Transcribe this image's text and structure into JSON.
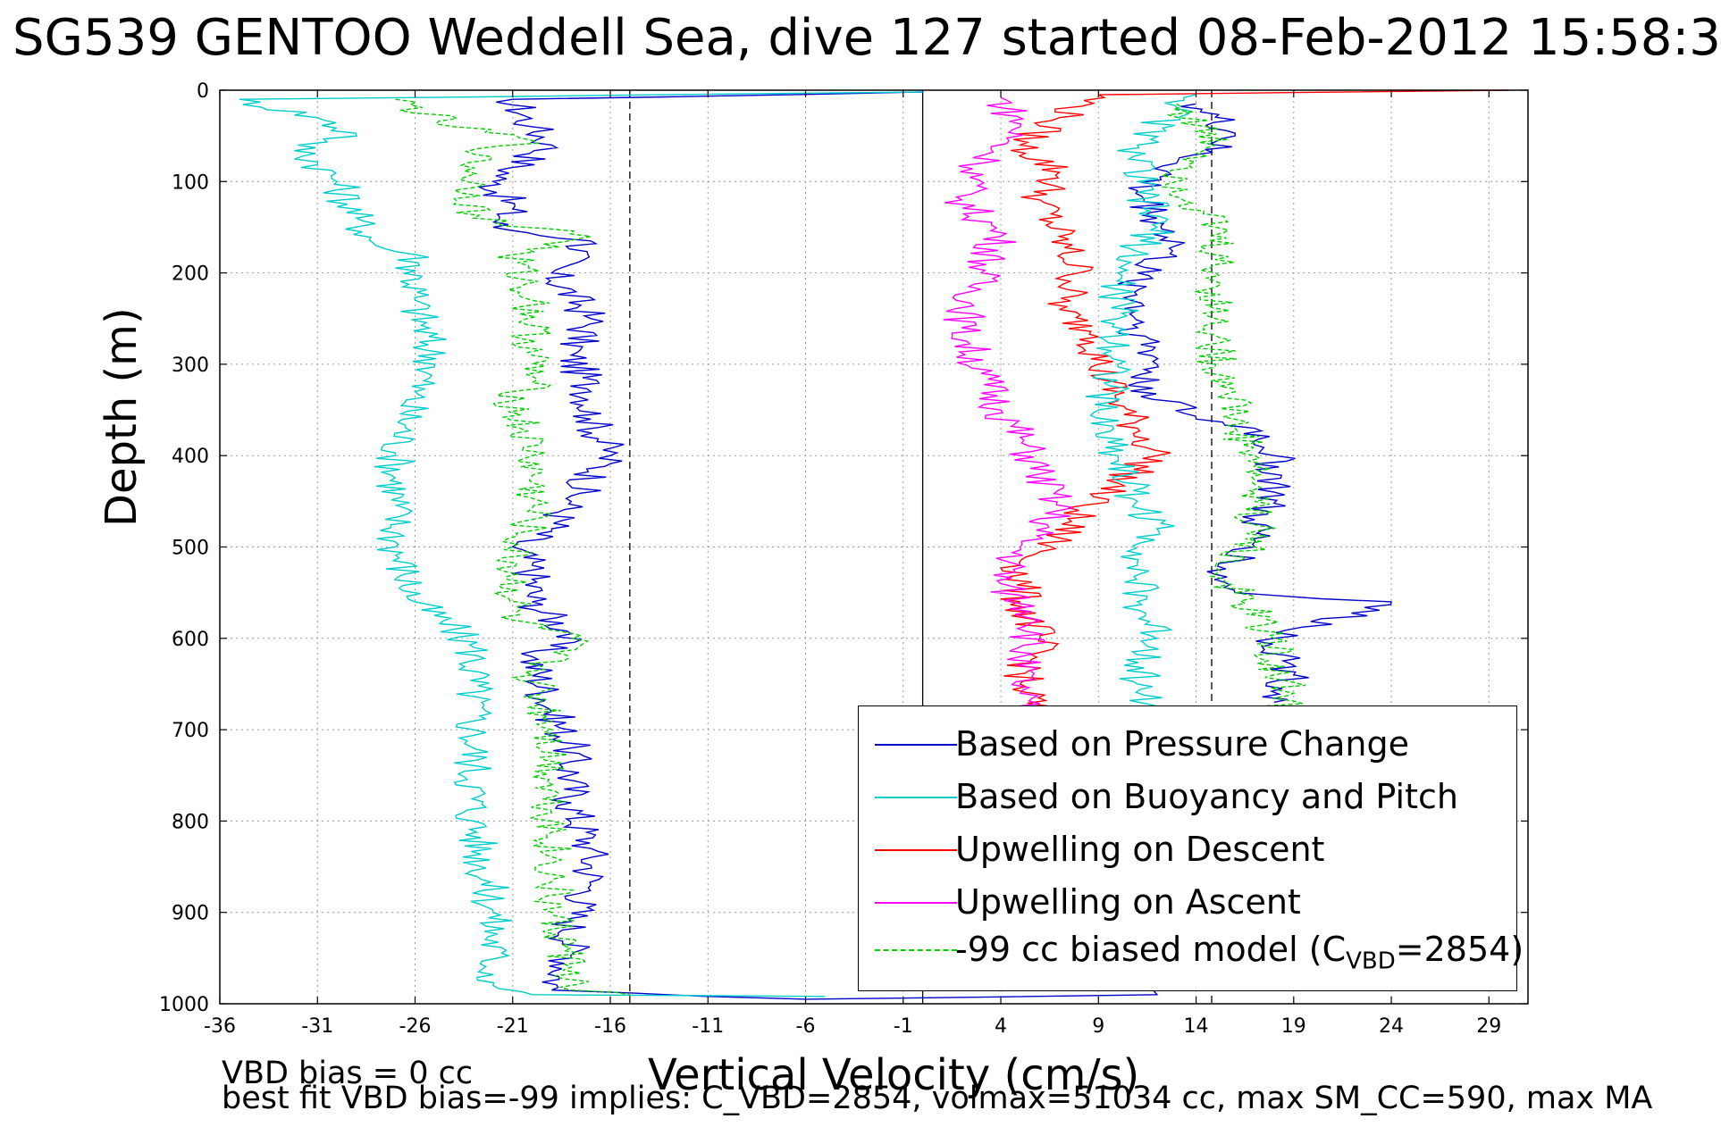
{
  "figure": {
    "title": "SG539 GENTOO Weddell Sea, dive 127 started 08-Feb-2012 15:58:3",
    "footer_line1": "VBD bias = 0 cc",
    "footer_line2": "best fit VBD bias=-99 implies: C_VBD=2854, volmax=51034 cc, max SM_CC=590, max MA"
  },
  "chart_data": {
    "type": "line",
    "xlabel": "Vertical Velocity (cm/s)",
    "ylabel": "Depth (m)",
    "xlim": [
      -36,
      31
    ],
    "ylim": [
      1000,
      0
    ],
    "xticks": [
      "-36",
      "-31",
      "-26",
      "-21",
      "-16",
      "-11",
      "-6",
      "-1",
      "4",
      "9",
      "14",
      "19",
      "24",
      "29"
    ],
    "yticks": [
      "0",
      "100",
      "200",
      "300",
      "400",
      "500",
      "600",
      "700",
      "800",
      "900",
      "1000"
    ],
    "grid": true,
    "legend_position": "bottom-right",
    "reference_lines": [
      {
        "x": -15,
        "style": "dashed",
        "color": "#000000"
      },
      {
        "x": 0,
        "style": "solid",
        "color": "#000000"
      },
      {
        "x": 14.8,
        "style": "dashed",
        "color": "#000000"
      }
    ],
    "series": [
      {
        "name": "Based on Pressure Change",
        "color": "#0000cc",
        "style": "solid",
        "points": [
          [
            0,
            2
          ],
          [
            -21,
            10
          ],
          [
            -20,
            40
          ],
          [
            -19,
            60
          ],
          [
            -22,
            100
          ],
          [
            -21,
            130
          ],
          [
            -22,
            150
          ],
          [
            -17,
            165
          ],
          [
            -19,
            200
          ],
          [
            -17,
            250
          ],
          [
            -18,
            290
          ],
          [
            -17,
            330
          ],
          [
            -17,
            360
          ],
          [
            -16,
            400
          ],
          [
            -18,
            450
          ],
          [
            -19,
            480
          ],
          [
            -21,
            500
          ],
          [
            -20,
            520
          ],
          [
            -20,
            560
          ],
          [
            -18,
            595
          ],
          [
            -20,
            620
          ],
          [
            -19,
            680
          ],
          [
            -18,
            720
          ],
          [
            -18,
            780
          ],
          [
            -17,
            830
          ],
          [
            -17,
            870
          ],
          [
            -18,
            910
          ],
          [
            -18,
            950
          ],
          [
            -19,
            985
          ],
          [
            -6,
            995
          ],
          [
            12,
            990
          ],
          [
            12,
            980
          ]
        ]
      },
      {
        "name": "Based on Buoyancy and Pitch",
        "color": "#00cccc",
        "style": "solid",
        "points": [
          [
            0,
            2
          ],
          [
            -35,
            10
          ],
          [
            -31,
            30
          ],
          [
            -29,
            50
          ],
          [
            -32,
            60
          ],
          [
            -30,
            100
          ],
          [
            -29,
            140
          ],
          [
            -28,
            170
          ],
          [
            -26,
            180
          ],
          [
            -26,
            230
          ],
          [
            -25,
            300
          ],
          [
            -26,
            330
          ],
          [
            -27,
            400
          ],
          [
            -27,
            500
          ],
          [
            -26,
            560
          ],
          [
            -24,
            590
          ],
          [
            -23,
            610
          ],
          [
            -23,
            700
          ],
          [
            -23,
            800
          ],
          [
            -22,
            900
          ],
          [
            -22,
            980
          ],
          [
            -20,
            990
          ],
          [
            -5,
            992
          ]
        ]
      },
      {
        "name": "Upwelling on Descent",
        "color": "#ff0000",
        "style": "solid",
        "points": [
          [
            30,
            0
          ],
          [
            9,
            5
          ],
          [
            7,
            30
          ],
          [
            5,
            60
          ],
          [
            7,
            90
          ],
          [
            6,
            120
          ],
          [
            7,
            160
          ],
          [
            8,
            200
          ],
          [
            7,
            240
          ],
          [
            9,
            270
          ],
          [
            9,
            300
          ],
          [
            10,
            340
          ],
          [
            11,
            370
          ],
          [
            12,
            400
          ],
          [
            10,
            430
          ],
          [
            8,
            460
          ],
          [
            7,
            490
          ],
          [
            5,
            520
          ],
          [
            5,
            560
          ],
          [
            6,
            600
          ],
          [
            5,
            650
          ],
          [
            6,
            680
          ]
        ]
      },
      {
        "name": "Upwelling on Ascent",
        "color": "#ff00ff",
        "style": "solid",
        "points": [
          [
            4,
            8
          ],
          [
            5,
            40
          ],
          [
            3,
            80
          ],
          [
            2,
            120
          ],
          [
            4,
            160
          ],
          [
            3,
            200
          ],
          [
            2,
            260
          ],
          [
            3,
            310
          ],
          [
            4,
            350
          ],
          [
            5,
            380
          ],
          [
            6,
            420
          ],
          [
            7,
            460
          ],
          [
            5,
            500
          ],
          [
            4,
            540
          ],
          [
            6,
            580
          ],
          [
            5,
            620
          ],
          [
            5,
            660
          ],
          [
            5,
            680
          ]
        ]
      },
      {
        "name": "-99 cc biased model (C_VBD=2854)",
        "color": "#00cc00",
        "style": "dashed",
        "points": [
          [
            -27,
            10
          ],
          [
            -24,
            40
          ],
          [
            -20,
            55
          ],
          [
            -23,
            70
          ],
          [
            -23,
            140
          ],
          [
            -17,
            160
          ],
          [
            -21,
            180
          ],
          [
            -20,
            230
          ],
          [
            -20,
            290
          ],
          [
            -20,
            320
          ],
          [
            -21,
            340
          ],
          [
            -20,
            400
          ],
          [
            -20,
            470
          ],
          [
            -21,
            500
          ],
          [
            -21,
            580
          ],
          [
            -18,
            600
          ],
          [
            -20,
            640
          ],
          [
            -19,
            700
          ],
          [
            -19,
            800
          ],
          [
            -19,
            900
          ],
          [
            -18,
            960
          ],
          [
            -18,
            985
          ],
          [
            -15,
            990
          ]
        ]
      },
      {
        "color": "#0000cc",
        "style": "solid",
        "points": [
          [
            14,
            15
          ],
          [
            16,
            50
          ],
          [
            13,
            80
          ],
          [
            11,
            110
          ],
          [
            12,
            140
          ],
          [
            13,
            170
          ],
          [
            11,
            200
          ],
          [
            11,
            260
          ],
          [
            12,
            300
          ],
          [
            11,
            320
          ],
          [
            14,
            360
          ],
          [
            17,
            370
          ],
          [
            18,
            400
          ],
          [
            18,
            440
          ],
          [
            17,
            470
          ],
          [
            17,
            500
          ],
          [
            15,
            530
          ],
          [
            16,
            550
          ],
          [
            24,
            560
          ],
          [
            18,
            600
          ],
          [
            19,
            640
          ],
          [
            18,
            670
          ]
        ]
      },
      {
        "color": "#00cccc",
        "style": "solid",
        "points": [
          [
            14,
            5
          ],
          [
            13,
            20
          ],
          [
            11,
            60
          ],
          [
            11,
            100
          ],
          [
            12,
            150
          ],
          [
            10,
            200
          ],
          [
            10,
            250
          ],
          [
            10,
            300
          ],
          [
            9,
            350
          ],
          [
            10,
            400
          ],
          [
            11,
            450
          ],
          [
            12,
            480
          ],
          [
            11,
            520
          ],
          [
            11,
            560
          ],
          [
            12,
            600
          ],
          [
            11,
            650
          ],
          [
            12,
            680
          ]
        ]
      },
      {
        "color": "#00cc00",
        "style": "dashed",
        "points": [
          [
            13,
            15
          ],
          [
            15,
            60
          ],
          [
            13,
            100
          ],
          [
            15,
            150
          ],
          [
            15,
            200
          ],
          [
            15,
            250
          ],
          [
            15,
            300
          ],
          [
            16,
            330
          ],
          [
            16,
            370
          ],
          [
            17,
            400
          ],
          [
            17,
            450
          ],
          [
            17,
            500
          ],
          [
            15,
            520
          ],
          [
            16,
            550
          ],
          [
            18,
            600
          ],
          [
            18,
            640
          ],
          [
            19,
            660
          ],
          [
            18,
            680
          ]
        ]
      }
    ]
  }
}
